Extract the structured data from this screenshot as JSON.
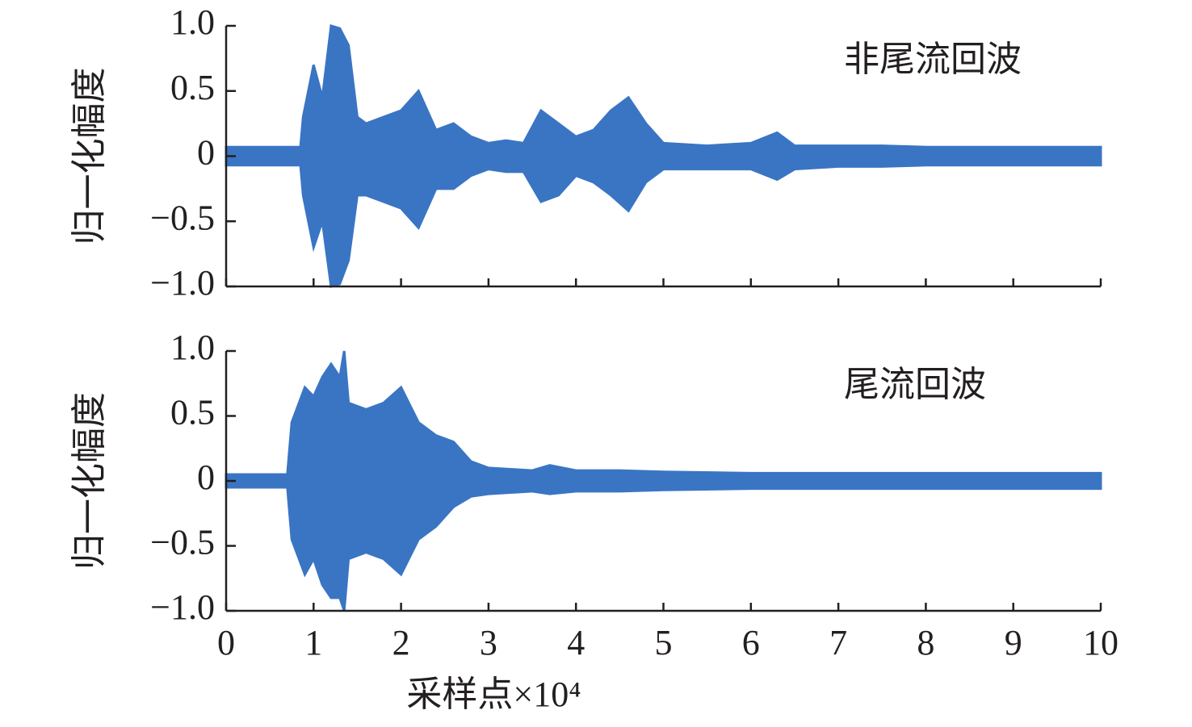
{
  "chart_data": [
    {
      "type": "band",
      "ylabel": "归一化幅度",
      "annotation": "非尾流回波",
      "color": "#3a75c4",
      "x": [
        0,
        0.85,
        0.88,
        1.0,
        1.1,
        1.2,
        1.3,
        1.4,
        1.5,
        1.6,
        1.8,
        2.0,
        2.2,
        2.4,
        2.6,
        2.8,
        3.0,
        3.2,
        3.4,
        3.6,
        3.8,
        4.0,
        4.2,
        4.4,
        4.6,
        4.8,
        5.0,
        5.5,
        6.0,
        6.3,
        6.5,
        7,
        7.5,
        8,
        8.5,
        9,
        9.5,
        10
      ],
      "upper": [
        0.07,
        0.07,
        0.3,
        0.7,
        0.45,
        1.0,
        0.98,
        0.85,
        0.3,
        0.25,
        0.3,
        0.35,
        0.5,
        0.2,
        0.25,
        0.15,
        0.1,
        0.12,
        0.1,
        0.35,
        0.25,
        0.15,
        0.2,
        0.35,
        0.45,
        0.25,
        0.1,
        0.08,
        0.1,
        0.18,
        0.08,
        0.08,
        0.08,
        0.07,
        0.07,
        0.07,
        0.07,
        0.07
      ],
      "lower": [
        -0.07,
        -0.07,
        -0.3,
        -0.7,
        -0.5,
        -1.0,
        -0.98,
        -0.8,
        -0.3,
        -0.3,
        -0.35,
        -0.4,
        -0.55,
        -0.25,
        -0.25,
        -0.15,
        -0.1,
        -0.12,
        -0.12,
        -0.35,
        -0.3,
        -0.15,
        -0.2,
        -0.3,
        -0.42,
        -0.2,
        -0.1,
        -0.1,
        -0.1,
        -0.18,
        -0.1,
        -0.08,
        -0.08,
        -0.07,
        -0.07,
        -0.07,
        -0.07,
        -0.07
      ],
      "xlim": [
        0,
        10
      ],
      "ylim": [
        -1,
        1
      ],
      "xticks": [
        0,
        1,
        2,
        3,
        4,
        5,
        6,
        7,
        8,
        9,
        10
      ],
      "yticks": [
        {
          "value": 1,
          "label": "1.0"
        },
        0.5,
        0,
        {
          "value": -0.5,
          "label": "−0.5"
        },
        {
          "value": -1,
          "label": "−1.0"
        }
      ]
    },
    {
      "type": "band",
      "ylabel": "归一化幅度",
      "annotation": "尾流回波",
      "xlabel": "采样点×10⁴",
      "color": "#3a75c4",
      "x": [
        0,
        0.7,
        0.75,
        0.9,
        1.0,
        1.1,
        1.2,
        1.3,
        1.35,
        1.4,
        1.6,
        1.8,
        2.0,
        2.2,
        2.4,
        2.6,
        2.8,
        3.0,
        3.5,
        3.7,
        4.0,
        4.5,
        5,
        6,
        7,
        8,
        9,
        10
      ],
      "upper": [
        0.05,
        0.05,
        0.45,
        0.72,
        0.65,
        0.8,
        0.9,
        0.8,
        1.0,
        0.6,
        0.55,
        0.6,
        0.72,
        0.45,
        0.35,
        0.3,
        0.15,
        0.1,
        0.08,
        0.12,
        0.08,
        0.08,
        0.07,
        0.06,
        0.06,
        0.06,
        0.06,
        0.06
      ],
      "lower": [
        -0.05,
        -0.05,
        -0.45,
        -0.72,
        -0.6,
        -0.8,
        -0.9,
        -0.9,
        -1.0,
        -0.6,
        -0.55,
        -0.6,
        -0.72,
        -0.45,
        -0.35,
        -0.2,
        -0.12,
        -0.1,
        -0.08,
        -0.1,
        -0.08,
        -0.08,
        -0.07,
        -0.06,
        -0.06,
        -0.06,
        -0.06,
        -0.06
      ],
      "xlim": [
        0,
        10
      ],
      "ylim": [
        -1,
        1
      ],
      "xticks": [
        0,
        1,
        2,
        3,
        4,
        5,
        6,
        7,
        8,
        9,
        10
      ],
      "yticks": [
        {
          "value": 1,
          "label": "1.0"
        },
        0.5,
        0,
        {
          "value": -0.5,
          "label": "−0.5"
        },
        {
          "value": -1,
          "label": "−1.0"
        }
      ]
    }
  ]
}
